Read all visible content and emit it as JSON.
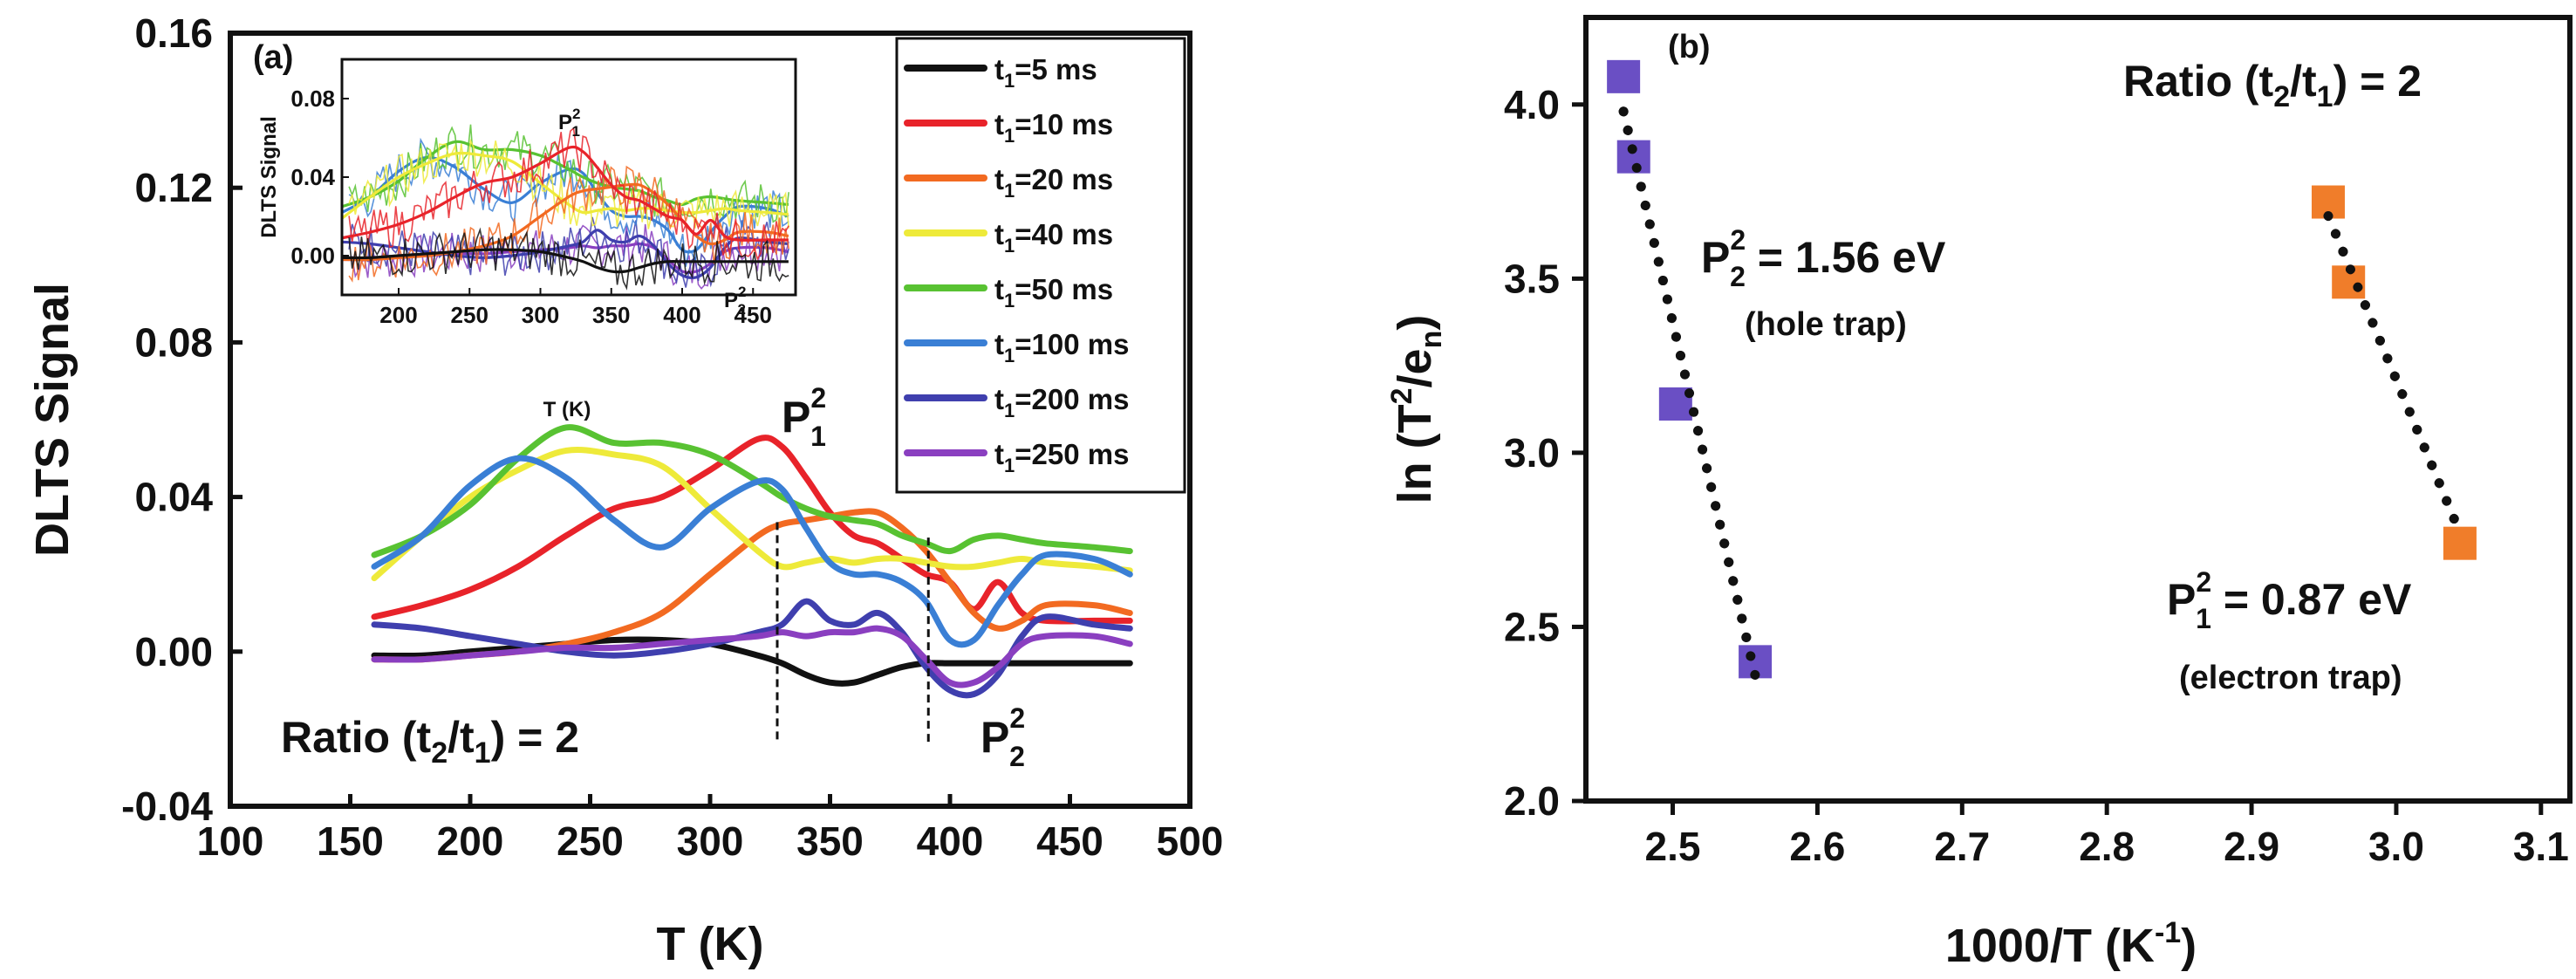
{
  "chart_data": [
    {
      "panel": "(a)",
      "type": "line",
      "xlabel": "T (K)",
      "ylabel": "DLTS Signal",
      "xlim": [
        100,
        500
      ],
      "ylim": [
        -0.04,
        0.16
      ],
      "xticks": [
        "100",
        "150",
        "200",
        "250",
        "300",
        "350",
        "400",
        "450",
        "500"
      ],
      "yticks": [
        "-0.04",
        "0.00",
        "0.04",
        "0.08",
        "0.12",
        "0.16"
      ],
      "x": [
        160,
        180,
        200,
        220,
        240,
        260,
        280,
        300,
        320,
        330,
        340,
        350,
        360,
        370,
        380,
        390,
        400,
        410,
        420,
        430,
        440,
        460,
        475
      ],
      "series": [
        {
          "name": "t1=5 ms",
          "color": "#111111",
          "values": [
            -0.001,
            -0.001,
            0.0,
            0.001,
            0.002,
            0.003,
            0.003,
            0.002,
            -0.001,
            -0.003,
            -0.006,
            -0.008,
            -0.008,
            -0.006,
            -0.004,
            -0.003,
            -0.003,
            -0.003,
            -0.003,
            -0.003,
            -0.003,
            -0.003,
            -0.003
          ]
        },
        {
          "name": "t1=10 ms",
          "color": "#e8232a",
          "values": [
            0.009,
            0.012,
            0.016,
            0.022,
            0.03,
            0.037,
            0.04,
            0.047,
            0.055,
            0.053,
            0.045,
            0.036,
            0.03,
            0.028,
            0.024,
            0.02,
            0.018,
            0.011,
            0.018,
            0.01,
            0.008,
            0.008,
            0.008
          ]
        },
        {
          "name": "t1=20 ms",
          "color": "#f26a21",
          "values": [
            -0.002,
            -0.002,
            -0.001,
            0.0,
            0.002,
            0.005,
            0.01,
            0.02,
            0.03,
            0.033,
            0.034,
            0.035,
            0.036,
            0.036,
            0.032,
            0.026,
            0.018,
            0.01,
            0.006,
            0.008,
            0.012,
            0.012,
            0.01
          ]
        },
        {
          "name": "t1=40 ms",
          "color": "#eeea3a",
          "values": [
            0.019,
            0.03,
            0.04,
            0.047,
            0.052,
            0.051,
            0.048,
            0.037,
            0.026,
            0.022,
            0.023,
            0.024,
            0.023,
            0.024,
            0.024,
            0.023,
            0.022,
            0.022,
            0.023,
            0.024,
            0.023,
            0.022,
            0.021
          ]
        },
        {
          "name": "t1=50 ms",
          "color": "#58c232",
          "values": [
            0.025,
            0.03,
            0.038,
            0.05,
            0.058,
            0.054,
            0.054,
            0.051,
            0.044,
            0.04,
            0.037,
            0.035,
            0.034,
            0.033,
            0.03,
            0.028,
            0.026,
            0.029,
            0.03,
            0.029,
            0.028,
            0.027,
            0.026
          ]
        },
        {
          "name": "t1=100 ms",
          "color": "#3a7fd5",
          "values": [
            0.022,
            0.03,
            0.043,
            0.05,
            0.045,
            0.034,
            0.027,
            0.037,
            0.044,
            0.042,
            0.032,
            0.023,
            0.02,
            0.02,
            0.018,
            0.013,
            0.003,
            0.003,
            0.012,
            0.02,
            0.025,
            0.024,
            0.02
          ]
        },
        {
          "name": "t1=200 ms",
          "color": "#3f3fae",
          "values": [
            0.007,
            0.006,
            0.004,
            0.002,
            0.0,
            -0.001,
            0.0,
            0.002,
            0.005,
            0.007,
            0.013,
            0.008,
            0.007,
            0.01,
            0.005,
            -0.004,
            -0.01,
            -0.011,
            -0.006,
            0.004,
            0.009,
            0.007,
            0.006
          ]
        },
        {
          "name": "t1=250 ms",
          "color": "#8a3fc0",
          "values": [
            -0.002,
            -0.002,
            -0.001,
            0.0,
            0.001,
            0.001,
            0.002,
            0.003,
            0.004,
            0.005,
            0.004,
            0.005,
            0.005,
            0.006,
            0.004,
            -0.002,
            -0.008,
            -0.008,
            -0.004,
            0.002,
            0.004,
            0.004,
            0.002
          ]
        }
      ],
      "legend": [
        "t1=5 ms",
        "t1=10 ms",
        "t1=20 ms",
        "t1=40 ms",
        "t1=50 ms",
        "t1=100 ms",
        "t1=200 ms",
        "t1=250 ms"
      ],
      "legend_position": "top-right",
      "annotations": {
        "ratio": "Ratio (t2/t1) = 2",
        "peak1": "P",
        "peak1_sub": "1",
        "peak1_sup": "2",
        "peak2": "P",
        "peak2_sub": "2",
        "peak2_sup": "2",
        "vline_x": [
          328,
          391
        ]
      },
      "inset": {
        "ylabel": "DLTS Signal",
        "xlabel": "T (K)",
        "xlim": [
          160,
          480
        ],
        "ylim": [
          -0.02,
          0.1
        ],
        "xticks": [
          "200",
          "250",
          "300",
          "350",
          "400",
          "450"
        ],
        "yticks": [
          "0.00",
          "0.04",
          "0.08"
        ],
        "peak1": "P",
        "peak1_sub": "1",
        "peak1_sup": "2",
        "peak2": "P",
        "peak2_sub": "2",
        "peak2_sup": "2"
      }
    },
    {
      "panel": "(b)",
      "type": "scatter",
      "xlabel": "1000/T (K",
      "xlabel_sup": "-1",
      "xlabel_close": ")",
      "ylabel": "ln (T",
      "ylabel_sup": "2",
      "ylabel_mid": "/e",
      "ylabel_sub": "n",
      "ylabel_close": ")",
      "xlim": [
        2.44,
        3.12
      ],
      "ylim": [
        2.0,
        4.25
      ],
      "xticks": [
        "2.5",
        "2.6",
        "2.7",
        "2.8",
        "2.9",
        "3.0",
        "3.1"
      ],
      "yticks": [
        "2.0",
        "2.5",
        "3.0",
        "3.5",
        "4.0"
      ],
      "series": [
        {
          "name": "hole trap",
          "color": "#6a4fc4",
          "x": [
            2.466,
            2.473,
            2.502,
            2.557
          ],
          "y": [
            4.08,
            3.85,
            3.14,
            2.4
          ],
          "fit_x": [
            2.466,
            2.557
          ],
          "fit_y": [
            3.98,
            2.36
          ]
        },
        {
          "name": "electron trap",
          "color": "#f07d2a",
          "x": [
            2.953,
            2.967,
            3.044
          ],
          "y": [
            3.72,
            3.49,
            2.74
          ],
          "fit_x": [
            2.953,
            3.044
          ],
          "fit_y": [
            3.68,
            2.77
          ]
        }
      ],
      "annotations": {
        "ratio": "Ratio (t2/t1) = 2",
        "hole_label": "P",
        "hole_sub": "2",
        "hole_sup": "2",
        "hole_value": " = 1.56 eV",
        "hole_caption": "(hole trap)",
        "electron_label": "P",
        "electron_sub": "1",
        "electron_sup": "2",
        "electron_value": " = 0.87 eV",
        "electron_caption": "(electron trap)"
      }
    }
  ],
  "labels": {
    "panel_a": "(a)",
    "panel_b": "(b)",
    "ratio_prefix": "Ratio (t",
    "ratio_sub1": "2",
    "ratio_mid": "/t",
    "ratio_sub2": "1",
    "ratio_suffix": ") = 2"
  }
}
